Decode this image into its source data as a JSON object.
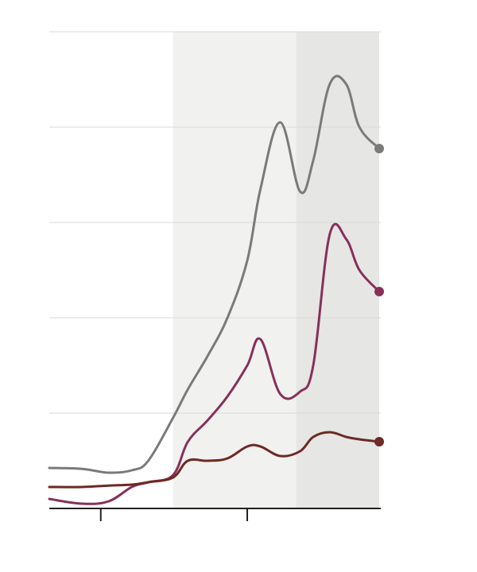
{
  "chart_data": {
    "type": "line",
    "title": "",
    "xlabel": "",
    "ylabel": "",
    "xlim": [
      0,
      100
    ],
    "ylim": [
      0,
      100
    ],
    "grid": true,
    "y_gridlines": [
      20,
      40,
      60,
      80,
      100
    ],
    "x_ticks": [
      15.6,
      60
    ],
    "shaded_regions": [
      {
        "from": 37.5,
        "to": 74.8,
        "color": "#f1f1f0"
      },
      {
        "from": 74.8,
        "to": 100,
        "color": "#e6e6e5"
      }
    ],
    "x": [
      0,
      10,
      18,
      25,
      30,
      37.5,
      42,
      48,
      54,
      60,
      64,
      70,
      76,
      80,
      85,
      90,
      94,
      100
    ],
    "series": [
      {
        "color": "#7b7a78",
        "values": [
          8.5,
          8.3,
          7.5,
          8.0,
          10.0,
          19.0,
          25.0,
          32.0,
          40.0,
          52.0,
          67.0,
          81.0,
          66.5,
          73.0,
          89.0,
          89.0,
          80.0,
          75.5
        ]
      },
      {
        "color": "#87305a",
        "values": [
          2.0,
          1.0,
          1.5,
          4.5,
          5.5,
          7.0,
          14.0,
          18.5,
          23.5,
          30.0,
          35.5,
          24.0,
          24.5,
          30.0,
          57.5,
          56.5,
          50.0,
          45.5
        ]
      },
      {
        "color": "#6e2a23",
        "values": [
          4.5,
          4.5,
          4.8,
          5.0,
          5.5,
          6.5,
          10.0,
          10.0,
          10.5,
          13.0,
          13.0,
          11.0,
          12.0,
          15.0,
          16.0,
          15.0,
          14.5,
          14.0
        ]
      }
    ]
  }
}
